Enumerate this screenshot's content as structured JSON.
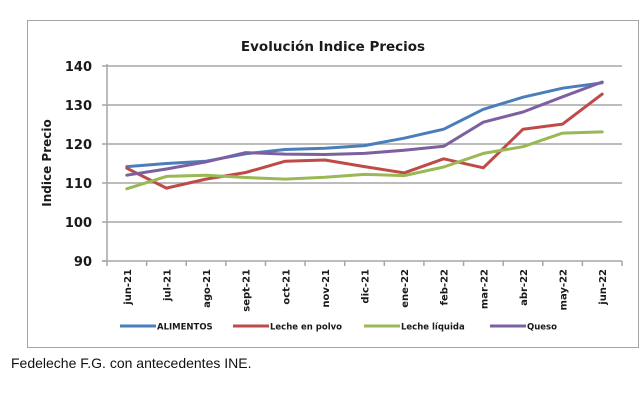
{
  "chart_data": {
    "type": "line",
    "title": "Evolución  Indice Precios",
    "xlabel": "",
    "ylabel": "Indice Precio",
    "ylim": [
      90,
      140
    ],
    "yticks": [
      90,
      100,
      110,
      120,
      130,
      140
    ],
    "grid": true,
    "legend_position": "bottom",
    "categories": [
      "jun-21",
      "jul-21",
      "ago-21",
      "sept-21",
      "oct-21",
      "nov-21",
      "dic-21",
      "ene-22",
      "feb-22",
      "mar-22",
      "abr-22",
      "may-22",
      "jun-22"
    ],
    "series": [
      {
        "name": "ALIMENTOS",
        "color": "#4a7ebb",
        "values": [
          114.2,
          115.0,
          115.6,
          117.5,
          118.6,
          118.9,
          119.6,
          121.5,
          123.8,
          128.9,
          132.0,
          134.3,
          135.7
        ]
      },
      {
        "name": "Leche en polvo",
        "color": "#be4b48",
        "values": [
          113.8,
          108.7,
          111.0,
          112.7,
          115.6,
          115.9,
          114.2,
          112.6,
          116.2,
          113.9,
          123.8,
          125.1,
          132.8
        ]
      },
      {
        "name": "Leche líquida",
        "color": "#98b954",
        "values": [
          108.5,
          111.7,
          112.0,
          111.4,
          111.0,
          111.5,
          112.2,
          111.9,
          114.1,
          117.6,
          119.3,
          122.8,
          123.1
        ]
      },
      {
        "name": "Queso",
        "color": "#7d60a0",
        "values": [
          112.0,
          113.6,
          115.4,
          117.8,
          117.4,
          117.3,
          117.6,
          118.4,
          119.4,
          125.6,
          128.2,
          132.1,
          135.9
        ]
      }
    ]
  },
  "source_note": "Fedeleche F.G. con antecedentes INE."
}
